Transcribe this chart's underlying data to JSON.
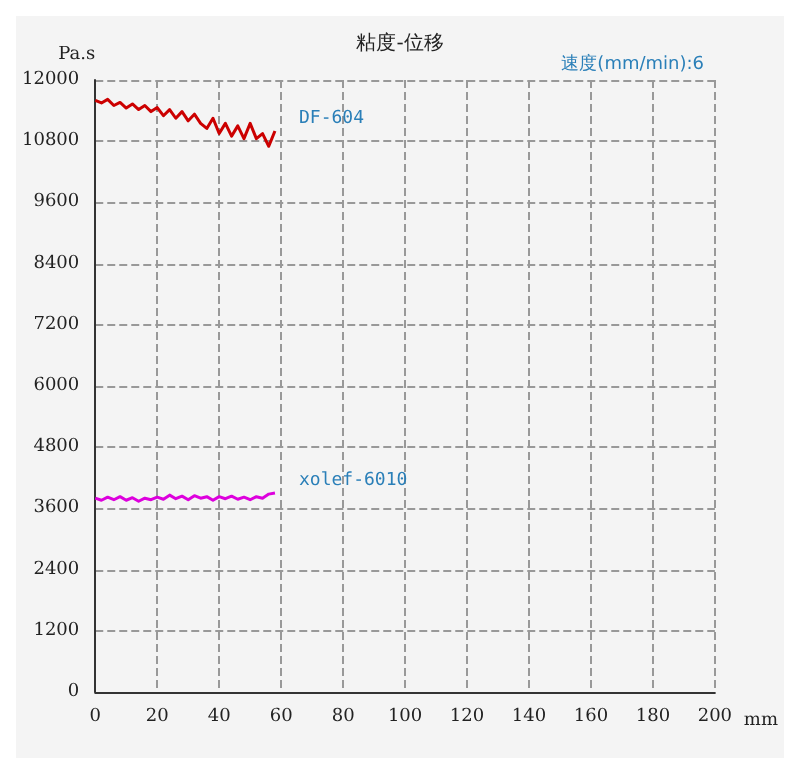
{
  "chart_data": {
    "type": "line",
    "title": "粘度-位移",
    "xlabel": "mm",
    "ylabel": "Pa.s",
    "annotations": [
      "速度(mm/min):6"
    ],
    "xlim": [
      0,
      200
    ],
    "xticks": [
      0,
      20,
      40,
      60,
      80,
      100,
      120,
      140,
      160,
      180,
      200
    ],
    "ylim": [
      0,
      12000
    ],
    "yticks": [
      0,
      1200,
      2400,
      3600,
      4800,
      6000,
      7200,
      8400,
      9600,
      10800,
      12000
    ],
    "grid": true,
    "legend": false,
    "marker": "none",
    "line_style": "solid",
    "series": [
      {
        "name": "DF-604",
        "color": "#cc0000",
        "x": [
          0,
          2,
          4,
          6,
          8,
          10,
          12,
          14,
          16,
          18,
          20,
          22,
          24,
          26,
          28,
          30,
          32,
          34,
          36,
          38,
          40,
          42,
          44,
          46,
          48,
          50,
          52,
          54,
          56,
          57,
          58
        ],
        "values": [
          11600,
          11550,
          11620,
          11500,
          11560,
          11450,
          11530,
          11420,
          11500,
          11380,
          11460,
          11300,
          11420,
          11250,
          11380,
          11200,
          11330,
          11150,
          11050,
          11250,
          10950,
          11150,
          10900,
          11100,
          10850,
          11150,
          10850,
          10950,
          10700,
          10850,
          11000
        ]
      },
      {
        "name": "xolef-6010",
        "color": "#dd00dd",
        "x": [
          0,
          2,
          4,
          6,
          8,
          10,
          12,
          14,
          16,
          18,
          20,
          22,
          24,
          26,
          28,
          30,
          32,
          34,
          36,
          38,
          40,
          42,
          44,
          46,
          48,
          50,
          52,
          54,
          56,
          58
        ],
        "values": [
          3800,
          3760,
          3820,
          3770,
          3830,
          3760,
          3810,
          3740,
          3800,
          3770,
          3820,
          3780,
          3860,
          3790,
          3840,
          3770,
          3850,
          3800,
          3830,
          3760,
          3830,
          3790,
          3840,
          3780,
          3820,
          3770,
          3830,
          3800,
          3880,
          3900
        ]
      }
    ]
  }
}
